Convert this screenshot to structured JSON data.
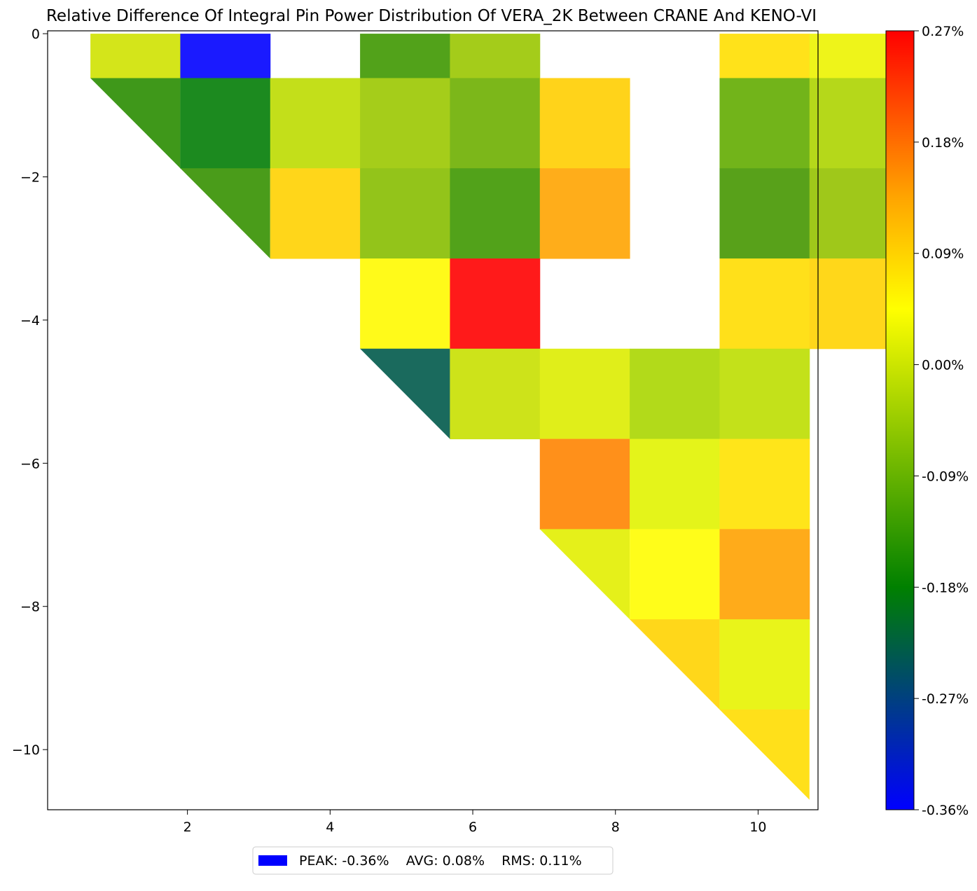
{
  "chart_data": {
    "type": "heatmap",
    "title": "Relative Difference Of Integral Pin Power Distribution Of VERA_2K Between CRANE And KENO-VI",
    "xlabel": "",
    "ylabel": "",
    "xlim": [
      0.04,
      10.84
    ],
    "ylim": [
      -10.84,
      0.04
    ],
    "x_ticks": [
      2,
      4,
      6,
      8,
      10
    ],
    "x_tick_labels": [
      "2",
      "4",
      "6",
      "8",
      "10"
    ],
    "y_ticks": [
      0,
      -2,
      -4,
      -6,
      -8,
      -10
    ],
    "y_tick_labels": [
      "0",
      "−2",
      "−4",
      "−6",
      "−8",
      "−10"
    ],
    "value_range": [
      -0.36,
      0.27
    ],
    "cells": [
      {
        "col": 1,
        "row": 0,
        "value": 0.0,
        "color": "#d4e51a",
        "shape": "square"
      },
      {
        "col": 2,
        "row": 0,
        "value": -0.36,
        "color": "#1a1aff",
        "shape": "square"
      },
      {
        "col": 4,
        "row": 0,
        "value": -0.13,
        "color": "#52a21a",
        "shape": "square"
      },
      {
        "col": 5,
        "row": 0,
        "value": -0.05,
        "color": "#a4cc1a",
        "shape": "square"
      },
      {
        "col": 8,
        "row": 0,
        "value": 0.08,
        "color": "#ffe21a",
        "shape": "square"
      },
      {
        "col": 9,
        "row": 0,
        "value": 0.04,
        "color": "#eef41a",
        "shape": "square"
      },
      {
        "col": 1,
        "row": 1,
        "value": -0.14,
        "color": "#3f981a",
        "shape": "lower-tri"
      },
      {
        "col": 2,
        "row": 1,
        "value": -0.18,
        "color": "#1c8a1f",
        "shape": "square"
      },
      {
        "col": 3,
        "row": 1,
        "value": -0.02,
        "color": "#c3df1a",
        "shape": "square"
      },
      {
        "col": 4,
        "row": 1,
        "value": -0.05,
        "color": "#a5cd1a",
        "shape": "square"
      },
      {
        "col": 5,
        "row": 1,
        "value": -0.08,
        "color": "#7cb71a",
        "shape": "square"
      },
      {
        "col": 6,
        "row": 1,
        "value": 0.09,
        "color": "#ffd31a",
        "shape": "square"
      },
      {
        "col": 8,
        "row": 1,
        "value": -0.09,
        "color": "#72b41a",
        "shape": "square"
      },
      {
        "col": 9,
        "row": 1,
        "value": -0.03,
        "color": "#b5d81a",
        "shape": "square"
      },
      {
        "col": 2,
        "row": 2,
        "value": -0.13,
        "color": "#4a9c1a",
        "shape": "lower-tri"
      },
      {
        "col": 3,
        "row": 2,
        "value": 0.09,
        "color": "#ffd61a",
        "shape": "square"
      },
      {
        "col": 4,
        "row": 2,
        "value": -0.06,
        "color": "#93c41a",
        "shape": "square"
      },
      {
        "col": 5,
        "row": 2,
        "value": -0.13,
        "color": "#52a21a",
        "shape": "square"
      },
      {
        "col": 6,
        "row": 2,
        "value": 0.12,
        "color": "#ffad1a",
        "shape": "square"
      },
      {
        "col": 8,
        "row": 2,
        "value": -0.12,
        "color": "#58a11a",
        "shape": "square"
      },
      {
        "col": 9,
        "row": 2,
        "value": -0.05,
        "color": "#9fc81a",
        "shape": "square"
      },
      {
        "col": 4,
        "row": 3,
        "value": 0.05,
        "color": "#fffa1a",
        "shape": "square"
      },
      {
        "col": 5,
        "row": 3,
        "value": 0.26,
        "color": "#ff1a1a",
        "shape": "square"
      },
      {
        "col": 8,
        "row": 3,
        "value": 0.08,
        "color": "#ffe01a",
        "shape": "square"
      },
      {
        "col": 9,
        "row": 3,
        "value": 0.09,
        "color": "#ffd71a",
        "shape": "square"
      },
      {
        "col": 4,
        "row": 4,
        "value": -0.23,
        "color": "#1a6a5d",
        "shape": "lower-tri"
      },
      {
        "col": 5,
        "row": 4,
        "value": -0.01,
        "color": "#cde31a",
        "shape": "square"
      },
      {
        "col": 6,
        "row": 4,
        "value": 0.01,
        "color": "#e0ee1a",
        "shape": "square"
      },
      {
        "col": 7,
        "row": 4,
        "value": -0.04,
        "color": "#b2da1a",
        "shape": "square"
      },
      {
        "col": 8,
        "row": 4,
        "value": -0.02,
        "color": "#c3e11a",
        "shape": "square"
      },
      {
        "col": 6,
        "row": 5,
        "value": 0.14,
        "color": "#ff901a",
        "shape": "square"
      },
      {
        "col": 7,
        "row": 5,
        "value": 0.02,
        "color": "#e4f41a",
        "shape": "square"
      },
      {
        "col": 8,
        "row": 5,
        "value": 0.07,
        "color": "#ffe51a",
        "shape": "square"
      },
      {
        "col": 6,
        "row": 6,
        "value": 0.02,
        "color": "#e5f01a",
        "shape": "lower-tri"
      },
      {
        "col": 7,
        "row": 6,
        "value": 0.05,
        "color": "#fffd1a",
        "shape": "square"
      },
      {
        "col": 8,
        "row": 6,
        "value": 0.12,
        "color": "#ffab1a",
        "shape": "square"
      },
      {
        "col": 7,
        "row": 7,
        "value": 0.09,
        "color": "#ffd71a",
        "shape": "lower-tri"
      },
      {
        "col": 8,
        "row": 7,
        "value": 0.03,
        "color": "#e9f41a",
        "shape": "square"
      },
      {
        "col": 8,
        "row": 8,
        "value": 0.08,
        "color": "#ffe01a",
        "shape": "lower-tri"
      }
    ],
    "colorbar": {
      "min": -0.36,
      "max": 0.27,
      "tick_labels": [
        "0.27%",
        "0.18%",
        "0.09%",
        "0.00%",
        "-0.09%",
        "-0.18%",
        "-0.27%",
        "-0.36%"
      ],
      "tick_values": [
        0.27,
        0.18,
        0.09,
        0.0,
        -0.09,
        -0.18,
        -0.27,
        -0.36
      ],
      "gradient_stops": [
        {
          "value": -0.36,
          "color": "#0000ff"
        },
        {
          "value": -0.18,
          "color": "#008000"
        },
        {
          "value": 0.045,
          "color": "#ffff00"
        },
        {
          "value": 0.135,
          "color": "#ffa500"
        },
        {
          "value": 0.27,
          "color": "#ff0000"
        }
      ]
    },
    "legend": {
      "position": "bottom-center",
      "swatch_color": "#0000ff",
      "text": "PEAK: -0.36%    AVG: 0.08%    RMS: 0.11%"
    }
  }
}
